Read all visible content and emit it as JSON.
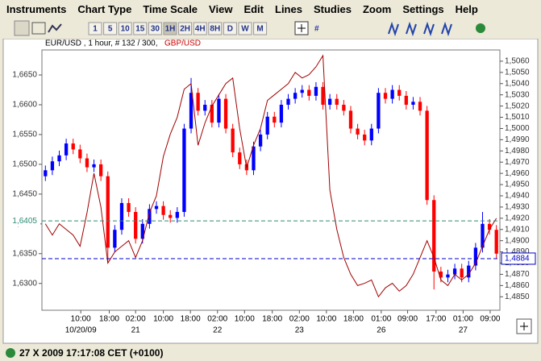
{
  "menu": [
    "Instruments",
    "Chart Type",
    "Time Scale",
    "View",
    "Edit",
    "Lines",
    "Studies",
    "Zoom",
    "Settings",
    "Help"
  ],
  "toolbar": {
    "periods": [
      "1",
      "5",
      "10",
      "15",
      "30",
      "1H",
      "2H",
      "4H",
      "8H",
      "D",
      "W",
      "M"
    ]
  },
  "chart_data": {
    "type": "candlestick",
    "title": "EUR/USD , 1 hour, # 132 / 300,",
    "up_color": "#0000ff",
    "down_color": "#ff0000",
    "open": [
      1.648,
      1.649,
      1.6505,
      1.6515,
      1.6535,
      1.6525,
      1.651,
      1.6495,
      1.65,
      1.648,
      1.636,
      1.639,
      1.6435,
      1.642,
      1.6375,
      1.64,
      1.6425,
      1.643,
      1.6415,
      1.641,
      1.642,
      1.656,
      1.662,
      1.659,
      1.66,
      1.657,
      1.661,
      1.656,
      1.652,
      1.65,
      1.649,
      1.653,
      1.655,
      1.658,
      1.657,
      1.66,
      1.661,
      1.662,
      1.6625,
      1.6615,
      1.663,
      1.66,
      1.661,
      1.66,
      1.659,
      1.656,
      1.655,
      1.654,
      1.656,
      1.662,
      1.661,
      1.6625,
      1.6615,
      1.66,
      1.6605,
      1.659,
      1.644,
      1.632,
      1.631,
      1.6315,
      1.6325,
      1.631,
      1.633,
      1.636,
      1.64,
      1.639
    ],
    "high": [
      1.6498,
      1.6513,
      1.6523,
      1.6543,
      1.6543,
      1.6533,
      1.6518,
      1.6508,
      1.6508,
      1.6488,
      1.6398,
      1.6443,
      1.6443,
      1.6428,
      1.6408,
      1.6433,
      1.6438,
      1.6438,
      1.6423,
      1.6428,
      1.6568,
      1.6645,
      1.6628,
      1.6608,
      1.6608,
      1.6618,
      1.6618,
      1.6568,
      1.6528,
      1.6508,
      1.6538,
      1.6558,
      1.6588,
      1.6588,
      1.6608,
      1.6618,
      1.6628,
      1.6633,
      1.6633,
      1.6638,
      1.6638,
      1.6618,
      1.6618,
      1.6608,
      1.6598,
      1.6568,
      1.6558,
      1.6568,
      1.6628,
      1.6628,
      1.6633,
      1.6633,
      1.6623,
      1.6613,
      1.6613,
      1.6598,
      1.6448,
      1.6328,
      1.6323,
      1.6333,
      1.6333,
      1.6338,
      1.6368,
      1.642,
      1.6408,
      1.6398
    ],
    "low": [
      1.6472,
      1.6482,
      1.6497,
      1.6507,
      1.6517,
      1.6502,
      1.6487,
      1.6487,
      1.6472,
      1.6335,
      1.6352,
      1.6382,
      1.6412,
      1.6367,
      1.6367,
      1.6392,
      1.6417,
      1.6407,
      1.6402,
      1.6402,
      1.6412,
      1.6552,
      1.6582,
      1.6582,
      1.6562,
      1.6562,
      1.6552,
      1.6512,
      1.6492,
      1.6482,
      1.6482,
      1.6522,
      1.6542,
      1.6562,
      1.6562,
      1.6592,
      1.6602,
      1.6612,
      1.6607,
      1.6607,
      1.6592,
      1.6592,
      1.6592,
      1.6582,
      1.6552,
      1.6542,
      1.6532,
      1.6532,
      1.6552,
      1.6602,
      1.6602,
      1.6607,
      1.6592,
      1.6592,
      1.6582,
      1.6432,
      1.629,
      1.6302,
      1.6302,
      1.6307,
      1.6302,
      1.6302,
      1.6322,
      1.6352,
      1.6382,
      1.6342
    ],
    "close": [
      1.649,
      1.6505,
      1.6515,
      1.6535,
      1.6525,
      1.651,
      1.6495,
      1.65,
      1.648,
      1.636,
      1.639,
      1.6435,
      1.642,
      1.6375,
      1.64,
      1.6425,
      1.643,
      1.6415,
      1.641,
      1.642,
      1.656,
      1.662,
      1.659,
      1.66,
      1.657,
      1.661,
      1.656,
      1.652,
      1.65,
      1.649,
      1.653,
      1.655,
      1.658,
      1.657,
      1.66,
      1.661,
      1.662,
      1.6625,
      1.6615,
      1.663,
      1.66,
      1.661,
      1.66,
      1.659,
      1.656,
      1.655,
      1.654,
      1.656,
      1.662,
      1.661,
      1.6625,
      1.6615,
      1.66,
      1.6605,
      1.659,
      1.644,
      1.632,
      1.631,
      1.6315,
      1.6325,
      1.631,
      1.633,
      1.636,
      1.64,
      1.639,
      1.635
    ],
    "overlay": {
      "type": "line",
      "name": "GBP/USD",
      "color": "#a00000",
      "axis": "y2",
      "values": [
        1.4915,
        1.4905,
        1.4915,
        1.491,
        1.4905,
        1.4895,
        1.4925,
        1.496,
        1.493,
        1.488,
        1.489,
        1.4895,
        1.49,
        1.4885,
        1.49,
        1.4925,
        1.494,
        1.4975,
        1.4995,
        1.501,
        1.5035,
        1.504,
        1.4985,
        1.5005,
        1.502,
        1.503,
        1.504,
        1.5045,
        1.5,
        1.4965,
        1.4985,
        1.5,
        1.5025,
        1.503,
        1.5035,
        1.504,
        1.505,
        1.5045,
        1.5048,
        1.5055,
        1.5065,
        1.4945,
        1.491,
        1.4885,
        1.487,
        1.486,
        1.4862,
        1.4865,
        1.485,
        1.4858,
        1.4862,
        1.4855,
        1.486,
        1.487,
        1.4885,
        1.49,
        1.4885,
        1.4865,
        1.486,
        1.487,
        1.4865,
        1.487,
        1.488,
        1.4895,
        1.491,
        1.492
      ]
    },
    "xlim": [
      -0.5,
      65.5
    ],
    "ylim": [
      1.6255,
      1.6692
    ],
    "y2lim": [
      1.4838,
      1.507
    ],
    "yticks": [
      {
        "value": 1.63,
        "label": "1,6300"
      },
      {
        "value": 1.635,
        "label": "1,6350"
      },
      {
        "value": 1.64,
        "label": "1,6400"
      },
      {
        "value": 1.645,
        "label": "1,6450"
      },
      {
        "value": 1.65,
        "label": "1,6500"
      },
      {
        "value": 1.655,
        "label": "1,6550"
      },
      {
        "value": 1.66,
        "label": "1,6600"
      },
      {
        "value": 1.665,
        "label": "1,6650"
      }
    ],
    "y2ticks": [
      {
        "value": 1.485,
        "label": "1,4850"
      },
      {
        "value": 1.486,
        "label": "1,4860"
      },
      {
        "value": 1.487,
        "label": "1,4870"
      },
      {
        "value": 1.488,
        "label": "1,4880"
      },
      {
        "value": 1.489,
        "label": "1,4890"
      },
      {
        "value": 1.49,
        "label": "1,4900"
      },
      {
        "value": 1.491,
        "label": "1,4910"
      },
      {
        "value": 1.492,
        "label": "1,4920"
      },
      {
        "value": 1.493,
        "label": "1,4930"
      },
      {
        "value": 1.494,
        "label": "1,4940"
      },
      {
        "value": 1.495,
        "label": "1,4950"
      },
      {
        "value": 1.496,
        "label": "1,4960"
      },
      {
        "value": 1.497,
        "label": "1,4970"
      },
      {
        "value": 1.498,
        "label": "1,4980"
      },
      {
        "value": 1.499,
        "label": "1,4990"
      },
      {
        "value": 1.5,
        "label": "1,5000"
      },
      {
        "value": 1.501,
        "label": "1,5010"
      },
      {
        "value": 1.502,
        "label": "1,5020"
      },
      {
        "value": 1.503,
        "label": "1,5030"
      },
      {
        "value": 1.504,
        "label": "1,5040"
      },
      {
        "value": 1.505,
        "label": "1,5050"
      },
      {
        "value": 1.506,
        "label": "1,5060"
      }
    ],
    "xticks": [
      {
        "value": 5.1,
        "label": "10:00"
      },
      {
        "value": 9.2,
        "label": "18:00"
      },
      {
        "value": 13.0,
        "label": "02:00"
      },
      {
        "value": 17.0,
        "label": "10:00"
      },
      {
        "value": 20.9,
        "label": "18:00"
      },
      {
        "value": 24.8,
        "label": "02:00"
      },
      {
        "value": 28.7,
        "label": "10:00"
      },
      {
        "value": 32.7,
        "label": "18:00"
      },
      {
        "value": 36.6,
        "label": "02:00"
      },
      {
        "value": 40.5,
        "label": "10:00"
      },
      {
        "value": 44.4,
        "label": "18:00"
      },
      {
        "value": 48.4,
        "label": "01:00"
      },
      {
        "value": 52.2,
        "label": "09:00"
      },
      {
        "value": 56.3,
        "label": "17:00"
      },
      {
        "value": 60.2,
        "label": "01:00"
      },
      {
        "value": 64.1,
        "label": "09:00"
      }
    ],
    "date_labels": [
      {
        "value": 5.1,
        "label": "10/20/09"
      },
      {
        "value": 13.0,
        "label": "21"
      },
      {
        "value": 24.8,
        "label": "22"
      },
      {
        "value": 36.6,
        "label": "23"
      },
      {
        "value": 48.4,
        "label": "26"
      },
      {
        "value": 60.2,
        "label": "27"
      }
    ],
    "price_lines": [
      {
        "value": 1.6405,
        "label": "1,6405",
        "axis": "y",
        "color": "#2e8b72"
      },
      {
        "value": 1.4884,
        "label": "1,4884",
        "axis": "y2",
        "color": "#0000cc"
      }
    ]
  },
  "status_bar": {
    "text": "27 X 2009 17:17:08  CET (+0100)"
  }
}
